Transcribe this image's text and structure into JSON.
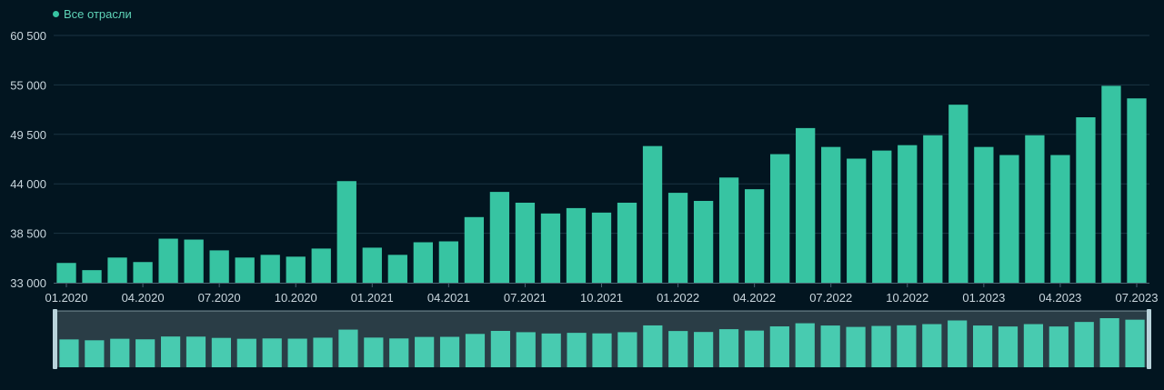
{
  "legend": {
    "label": "Все отрасли"
  },
  "colors": {
    "background": "#021520",
    "bar": "#37c4a2",
    "navigator_bar": "#48cbb0",
    "grid": "#1b3443",
    "axis_text": "#c9d6dd",
    "navigator_mask": "#2f414a",
    "navigator_handle": "#b9d3db"
  },
  "chart_data": {
    "type": "bar",
    "title": "",
    "xlabel": "",
    "ylabel": "",
    "series": [
      {
        "name": "Все отрасли",
        "values": [
          35200,
          34400,
          35800,
          35300,
          37900,
          37800,
          36600,
          35800,
          36100,
          35900,
          36800,
          44300,
          36900,
          36100,
          37500,
          37600,
          40300,
          43100,
          41900,
          40700,
          41300,
          40800,
          41900,
          48200,
          43000,
          42100,
          44700,
          43400,
          47300,
          50200,
          48100,
          46800,
          47700,
          48300,
          49400,
          52800,
          48100,
          47200,
          49400,
          47200,
          51400,
          54900,
          53500
        ]
      }
    ],
    "y_axis": {
      "min": 33000,
      "max": 60500,
      "ticks": [
        "33 000",
        "38 500",
        "44 000",
        "49 500",
        "55 000",
        "60 500"
      ]
    },
    "x_tick_labels": [
      "01.2020",
      "04.2020",
      "07.2020",
      "10.2020",
      "01.2021",
      "04.2021",
      "07.2021",
      "10.2021",
      "01.2022",
      "04.2022",
      "07.2022",
      "10.2022",
      "01.2023",
      "04.2023",
      "07.2023"
    ],
    "x_tick_step": 3
  }
}
